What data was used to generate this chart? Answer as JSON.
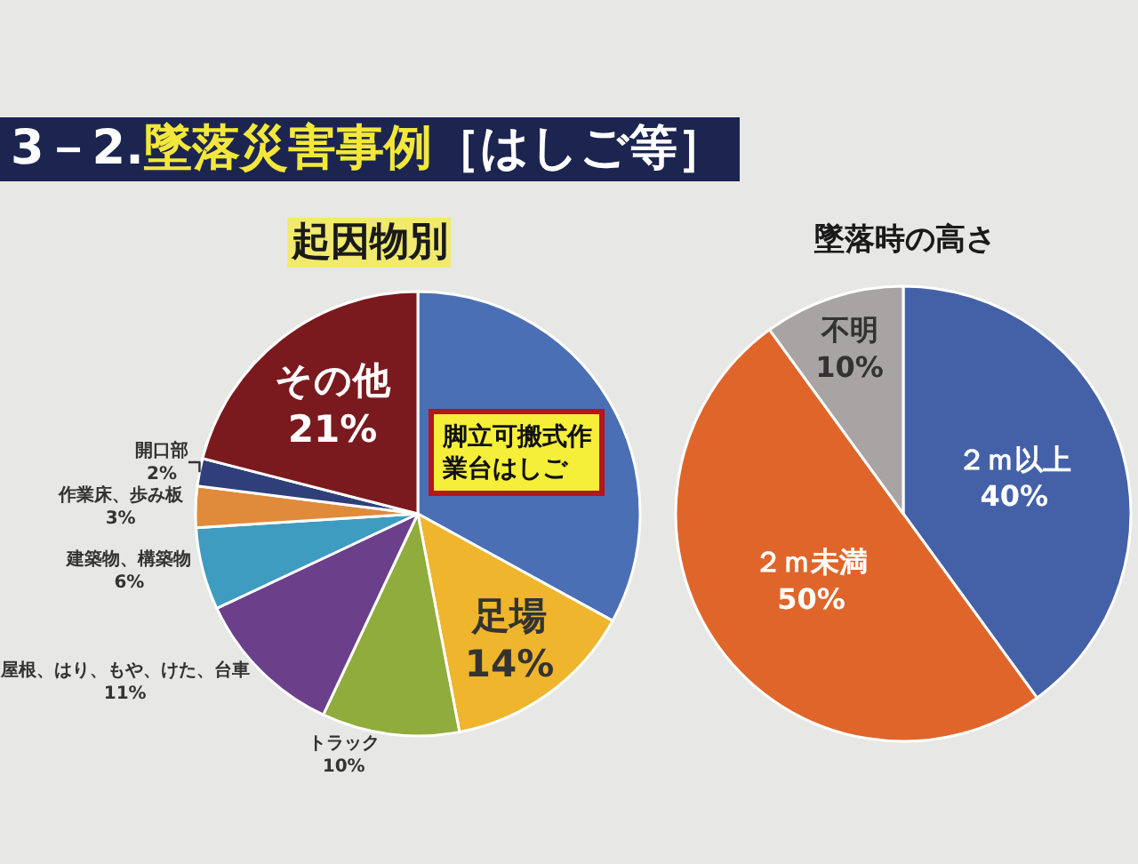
{
  "chart_data": [
    {
      "type": "pie",
      "title": "起因物別",
      "annotations": [
        "3－2.墜落災害事例［はしご等］"
      ],
      "categories": [
        "脚立可搬式作業台はしご",
        "足場",
        "トラック",
        "屋根、はり、もや、けた、台車",
        "建築物、構築物",
        "作業床、歩み板",
        "開口部",
        "その他"
      ],
      "values": [
        33,
        14,
        10,
        11,
        6,
        3,
        2,
        21
      ],
      "value_labels": [
        null,
        "14%",
        "10%",
        "11%",
        "6%",
        "3%",
        "2%",
        "21%"
      ],
      "colors": [
        "#4a6fb5",
        "#efb52c",
        "#8fac3c",
        "#6b3f8a",
        "#3e9cc0",
        "#e08a3c",
        "#2e3f7a",
        "#7a1a1e"
      ]
    },
    {
      "type": "pie",
      "title": "墜落時の高さ",
      "categories": [
        "２ｍ以上",
        "２ｍ未満",
        "不明"
      ],
      "values": [
        40,
        50,
        10
      ],
      "value_labels": [
        "40%",
        "50%",
        "10%"
      ],
      "colors": [
        "#4461a8",
        "#e0652a",
        "#a8a4a4"
      ]
    }
  ]
}
